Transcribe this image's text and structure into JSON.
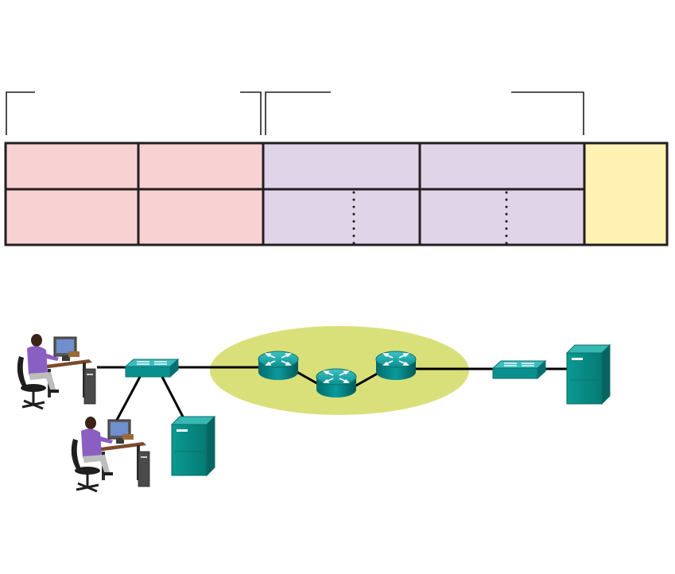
{
  "frame_table": {
    "left_section": {
      "color": "#f8d1d3",
      "cells": 4
    },
    "middle_section": {
      "color": "#e0d5e8",
      "cells": 4,
      "dotted_dividers": 2
    },
    "right_section": {
      "color": "#fff2b3",
      "cells": 1
    }
  },
  "network": {
    "cloud_color": "#d9e07a",
    "device_color": "#008b8b",
    "devices": [
      {
        "id": "pc-1",
        "icon": "workstation-user-icon"
      },
      {
        "id": "pc-2",
        "icon": "workstation-user-icon"
      },
      {
        "id": "switch-left",
        "icon": "switch-icon"
      },
      {
        "id": "server-left",
        "icon": "server-icon"
      },
      {
        "id": "router-1",
        "icon": "router-icon"
      },
      {
        "id": "router-2",
        "icon": "router-icon"
      },
      {
        "id": "router-3",
        "icon": "router-icon"
      },
      {
        "id": "switch-right",
        "icon": "switch-icon"
      },
      {
        "id": "server-right",
        "icon": "server-icon"
      }
    ]
  }
}
